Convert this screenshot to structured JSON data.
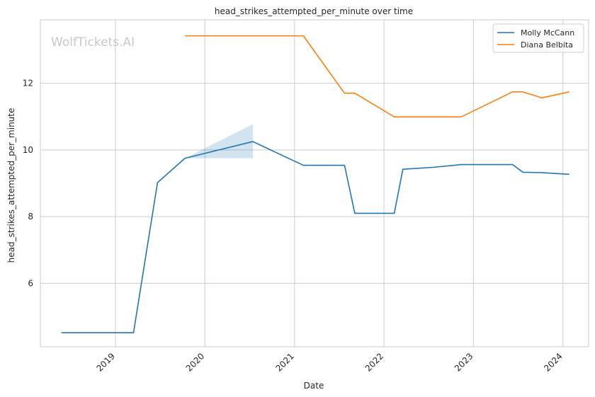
{
  "chart_data": {
    "type": "line",
    "title": "head_strikes_attempted_per_minute over time",
    "xlabel": "Date",
    "ylabel": "head_strikes_attempted_per_minute",
    "watermark": "WolfTickets.AI",
    "xlim": [
      "2018-03-01",
      "2024-04-15"
    ],
    "ylim": [
      4.1,
      13.9
    ],
    "x_ticks": [
      "2019-01-01",
      "2020-01-01",
      "2021-01-01",
      "2022-01-01",
      "2023-01-01",
      "2024-01-01"
    ],
    "x_tick_labels": [
      "2019",
      "2020",
      "2021",
      "2022",
      "2023",
      "2024"
    ],
    "y_ticks": [
      6,
      8,
      10,
      12
    ],
    "y_tick_labels": [
      "6",
      "8",
      "10",
      "12"
    ],
    "grid": true,
    "legend_position": "top-right",
    "series": [
      {
        "name": "Molly McCann",
        "color": "#1f77b4",
        "x": [
          "2018-05-26",
          "2019-03-16",
          "2019-06-22",
          "2019-10-12",
          "2020-07-15",
          "2021-02-06",
          "2021-07-24",
          "2021-09-04",
          "2022-02-12",
          "2022-03-19",
          "2022-07-23",
          "2022-11-12",
          "2023-06-10",
          "2023-07-22",
          "2023-10-07",
          "2024-01-27"
        ],
        "y": [
          4.52,
          4.52,
          9.02,
          9.75,
          10.25,
          9.54,
          9.54,
          8.1,
          8.1,
          9.42,
          9.48,
          9.56,
          9.56,
          9.33,
          9.32,
          9.27
        ],
        "band": {
          "x": [
            "2019-10-12",
            "2020-07-15"
          ],
          "lower": [
            9.75,
            9.75
          ],
          "upper": [
            9.75,
            10.77
          ]
        }
      },
      {
        "name": "Diana Belbita",
        "color": "#ff7f0e",
        "x": [
          "2019-10-12",
          "2021-02-06",
          "2021-07-24",
          "2021-09-04",
          "2022-02-12",
          "2022-11-12",
          "2023-06-10",
          "2023-07-22",
          "2023-10-07",
          "2024-01-27"
        ],
        "y": [
          13.42,
          13.42,
          11.7,
          11.7,
          10.99,
          10.99,
          11.74,
          11.74,
          11.56,
          11.74
        ]
      }
    ]
  }
}
